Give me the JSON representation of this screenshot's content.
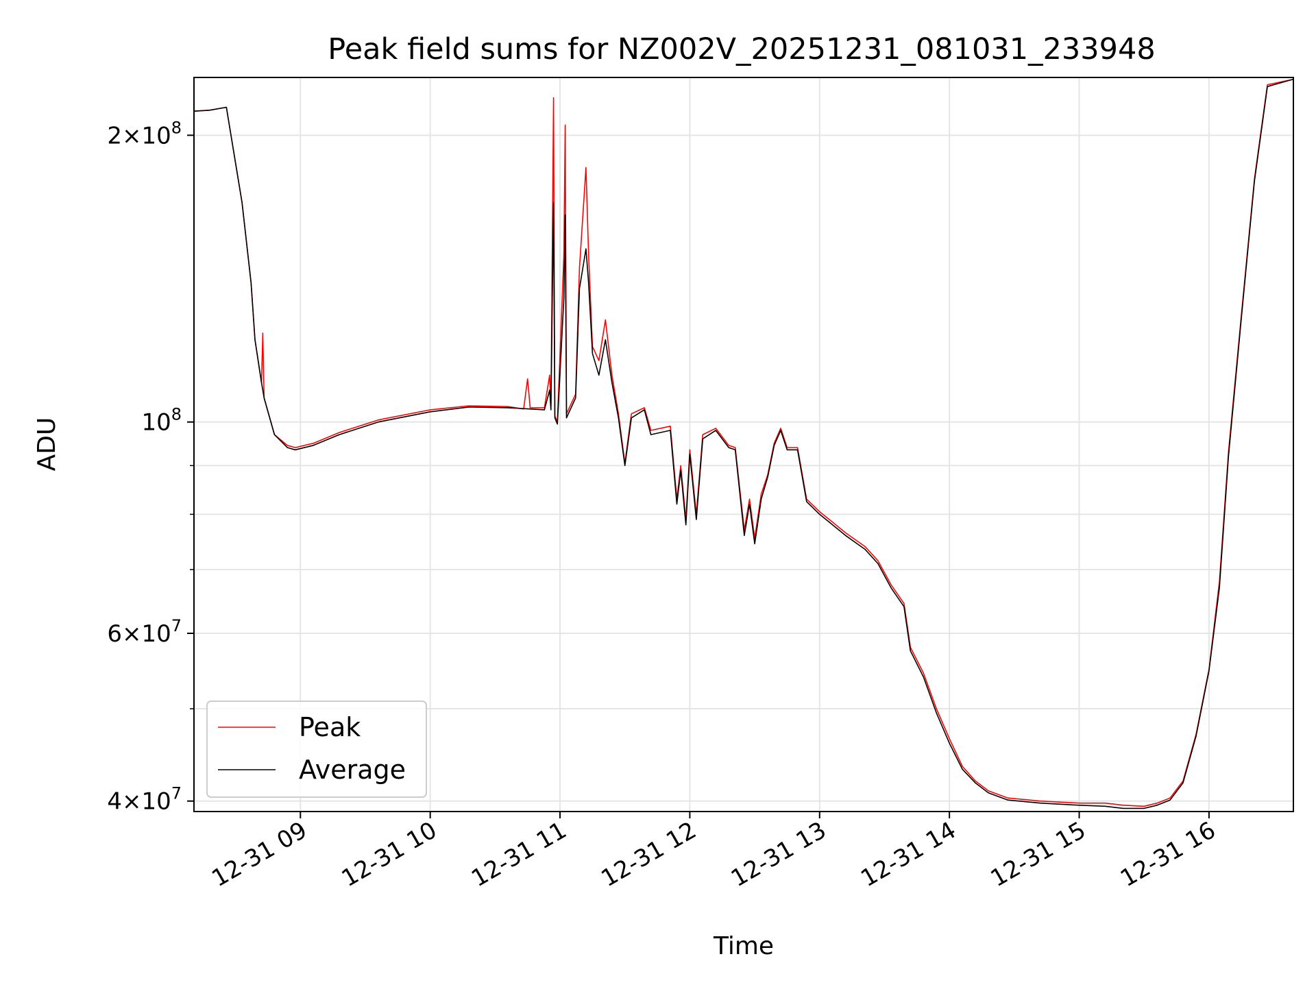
{
  "chart_data": {
    "type": "line",
    "title": "Peak field sums for NZ002V_20251231_081031_233948",
    "xlabel": "Time",
    "ylabel": "ADU",
    "y_scale": "log",
    "grid": true,
    "legend_position": "lower-left",
    "xlim_hours": [
      8.18,
      16.65
    ],
    "ylim": [
      39000000,
      230000000
    ],
    "x_ticks": [
      {
        "value": 9,
        "label": "12-31 09"
      },
      {
        "value": 10,
        "label": "12-31 10"
      },
      {
        "value": 11,
        "label": "12-31 11"
      },
      {
        "value": 12,
        "label": "12-31 12"
      },
      {
        "value": 13,
        "label": "12-31 13"
      },
      {
        "value": 14,
        "label": "12-31 14"
      },
      {
        "value": 15,
        "label": "12-31 15"
      },
      {
        "value": 16,
        "label": "12-31 16"
      }
    ],
    "y_ticks_major": [
      {
        "value": 40000000,
        "base": "4×10",
        "exp": "7"
      },
      {
        "value": 60000000,
        "base": "6×10",
        "exp": "7"
      },
      {
        "value": 100000000,
        "base": "10",
        "exp": "8"
      },
      {
        "value": 200000000,
        "base": "2×10",
        "exp": "8"
      }
    ],
    "y_ticks_minor": [
      50000000,
      70000000,
      80000000,
      90000000
    ],
    "series": [
      {
        "name": "Peak",
        "color": "#ff0000",
        "points": [
          [
            8.18,
            212000000
          ],
          [
            8.3,
            212500000
          ],
          [
            8.43,
            214000000
          ],
          [
            8.55,
            170000000
          ],
          [
            8.62,
            140000000
          ],
          [
            8.65,
            122000000
          ],
          [
            8.7,
            110000000
          ],
          [
            8.71,
            124000000
          ],
          [
            8.72,
            106000000
          ],
          [
            8.8,
            97000000
          ],
          [
            8.9,
            94500000
          ],
          [
            8.96,
            94000000
          ],
          [
            9.1,
            95000000
          ],
          [
            9.3,
            97500000
          ],
          [
            9.6,
            100500000
          ],
          [
            10.0,
            103000000
          ],
          [
            10.3,
            104000000
          ],
          [
            10.6,
            103800000
          ],
          [
            10.72,
            103200000
          ],
          [
            10.75,
            111000000
          ],
          [
            10.77,
            103500000
          ],
          [
            10.88,
            103500000
          ],
          [
            10.92,
            112000000
          ],
          [
            10.93,
            104000000
          ],
          [
            10.95,
            219000000
          ],
          [
            10.96,
            101500000
          ],
          [
            10.98,
            100000000
          ],
          [
            11.03,
            150000000
          ],
          [
            11.04,
            205000000
          ],
          [
            11.05,
            102000000
          ],
          [
            11.12,
            107000000
          ],
          [
            11.15,
            145000000
          ],
          [
            11.2,
            185000000
          ],
          [
            11.22,
            150000000
          ],
          [
            11.25,
            120000000
          ],
          [
            11.3,
            116000000
          ],
          [
            11.35,
            128000000
          ],
          [
            11.4,
            112000000
          ],
          [
            11.45,
            102000000
          ],
          [
            11.5,
            90500000
          ],
          [
            11.55,
            102000000
          ],
          [
            11.65,
            103500000
          ],
          [
            11.7,
            98000000
          ],
          [
            11.85,
            99000000
          ],
          [
            11.9,
            83000000
          ],
          [
            11.93,
            90000000
          ],
          [
            11.97,
            79000000
          ],
          [
            12.0,
            93500000
          ],
          [
            12.05,
            80000000
          ],
          [
            12.1,
            97000000
          ],
          [
            12.2,
            98500000
          ],
          [
            12.3,
            94500000
          ],
          [
            12.35,
            94000000
          ],
          [
            12.42,
            77000000
          ],
          [
            12.46,
            83000000
          ],
          [
            12.5,
            75500000
          ],
          [
            12.55,
            84000000
          ],
          [
            12.6,
            88000000
          ],
          [
            12.65,
            95000000
          ],
          [
            12.7,
            98500000
          ],
          [
            12.75,
            94000000
          ],
          [
            12.83,
            94000000
          ],
          [
            12.9,
            83000000
          ],
          [
            13.0,
            80500000
          ],
          [
            13.1,
            78500000
          ],
          [
            13.2,
            76500000
          ],
          [
            13.35,
            74000000
          ],
          [
            13.45,
            71500000
          ],
          [
            13.55,
            67500000
          ],
          [
            13.65,
            64500000
          ],
          [
            13.7,
            58000000
          ],
          [
            13.8,
            54500000
          ],
          [
            13.9,
            50000000
          ],
          [
            14.0,
            46500000
          ],
          [
            14.1,
            43500000
          ],
          [
            14.2,
            42000000
          ],
          [
            14.3,
            41000000
          ],
          [
            14.45,
            40300000
          ],
          [
            14.7,
            40000000
          ],
          [
            15.0,
            39800000
          ],
          [
            15.2,
            39800000
          ],
          [
            15.34,
            39600000
          ],
          [
            15.5,
            39500000
          ],
          [
            15.6,
            39800000
          ],
          [
            15.7,
            40300000
          ],
          [
            15.8,
            42000000
          ],
          [
            15.9,
            47000000
          ],
          [
            16.0,
            55000000
          ],
          [
            16.08,
            68000000
          ],
          [
            16.15,
            93000000
          ],
          [
            16.25,
            130000000
          ],
          [
            16.35,
            180000000
          ],
          [
            16.45,
            226000000
          ],
          [
            16.65,
            229000000
          ]
        ]
      },
      {
        "name": "Average",
        "color": "#000000",
        "points": [
          [
            8.18,
            212000000
          ],
          [
            8.3,
            212500000
          ],
          [
            8.43,
            214000000
          ],
          [
            8.55,
            170000000
          ],
          [
            8.62,
            140000000
          ],
          [
            8.65,
            122000000
          ],
          [
            8.7,
            110000000
          ],
          [
            8.72,
            106000000
          ],
          [
            8.8,
            97000000
          ],
          [
            8.9,
            94000000
          ],
          [
            8.96,
            93500000
          ],
          [
            9.1,
            94500000
          ],
          [
            9.3,
            97000000
          ],
          [
            9.6,
            100000000
          ],
          [
            10.0,
            102500000
          ],
          [
            10.3,
            103700000
          ],
          [
            10.6,
            103500000
          ],
          [
            10.88,
            103000000
          ],
          [
            10.92,
            108000000
          ],
          [
            10.93,
            103000000
          ],
          [
            10.95,
            170000000
          ],
          [
            10.96,
            101000000
          ],
          [
            10.98,
            99500000
          ],
          [
            11.03,
            135000000
          ],
          [
            11.04,
            165000000
          ],
          [
            11.05,
            101000000
          ],
          [
            11.12,
            106000000
          ],
          [
            11.15,
            138000000
          ],
          [
            11.2,
            152000000
          ],
          [
            11.22,
            140000000
          ],
          [
            11.25,
            118000000
          ],
          [
            11.3,
            112000000
          ],
          [
            11.35,
            122000000
          ],
          [
            11.4,
            110000000
          ],
          [
            11.45,
            101000000
          ],
          [
            11.5,
            90000000
          ],
          [
            11.55,
            101000000
          ],
          [
            11.65,
            103000000
          ],
          [
            11.7,
            97000000
          ],
          [
            11.85,
            98000000
          ],
          [
            11.9,
            82000000
          ],
          [
            11.93,
            89000000
          ],
          [
            11.97,
            78000000
          ],
          [
            12.0,
            92500000
          ],
          [
            12.05,
            79000000
          ],
          [
            12.1,
            96000000
          ],
          [
            12.2,
            98000000
          ],
          [
            12.3,
            94000000
          ],
          [
            12.35,
            93500000
          ],
          [
            12.42,
            76000000
          ],
          [
            12.46,
            82000000
          ],
          [
            12.5,
            74500000
          ],
          [
            12.55,
            83000000
          ],
          [
            12.6,
            87500000
          ],
          [
            12.65,
            94500000
          ],
          [
            12.7,
            98000000
          ],
          [
            12.75,
            93500000
          ],
          [
            12.83,
            93500000
          ],
          [
            12.9,
            82500000
          ],
          [
            13.0,
            80000000
          ],
          [
            13.1,
            78000000
          ],
          [
            13.2,
            76000000
          ],
          [
            13.35,
            73500000
          ],
          [
            13.45,
            71000000
          ],
          [
            13.55,
            67000000
          ],
          [
            13.65,
            64000000
          ],
          [
            13.7,
            57500000
          ],
          [
            13.8,
            54000000
          ],
          [
            13.9,
            49500000
          ],
          [
            14.0,
            46000000
          ],
          [
            14.1,
            43200000
          ],
          [
            14.2,
            41800000
          ],
          [
            14.3,
            40800000
          ],
          [
            14.45,
            40100000
          ],
          [
            14.7,
            39800000
          ],
          [
            15.0,
            39600000
          ],
          [
            15.2,
            39500000
          ],
          [
            15.34,
            39300000
          ],
          [
            15.5,
            39300000
          ],
          [
            15.6,
            39600000
          ],
          [
            15.7,
            40100000
          ],
          [
            15.8,
            41800000
          ],
          [
            15.9,
            46800000
          ],
          [
            16.0,
            54800000
          ],
          [
            16.08,
            67000000
          ],
          [
            16.15,
            92000000
          ],
          [
            16.25,
            129000000
          ],
          [
            16.35,
            179000000
          ],
          [
            16.45,
            225000000
          ],
          [
            16.65,
            229000000
          ]
        ]
      }
    ]
  }
}
